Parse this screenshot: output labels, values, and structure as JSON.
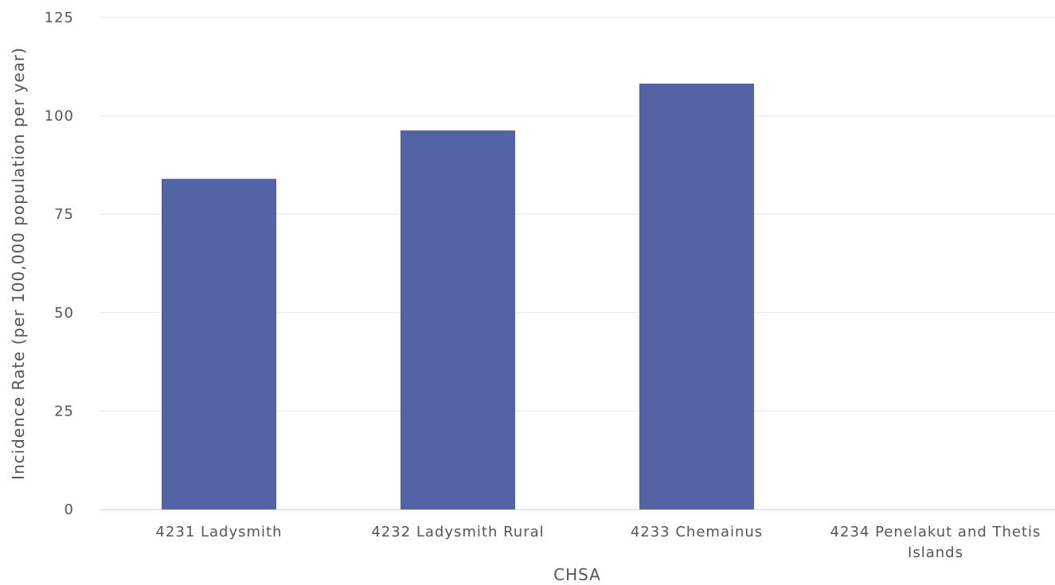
{
  "chart_data": {
    "type": "bar",
    "title": "",
    "xlabel": "CHSA",
    "ylabel": "Incidence Rate (per 100,000 population per year)",
    "ylim": [
      0,
      125
    ],
    "yticks": [
      0,
      25,
      50,
      75,
      100,
      125
    ],
    "categories": [
      "4231 Ladysmith",
      "4232 Ladysmith Rural",
      "4233 Chemainus",
      "4234 Penelakut and Thetis Islands"
    ],
    "category_lines": [
      [
        "4231 Ladysmith"
      ],
      [
        "4232 Ladysmith Rural"
      ],
      [
        "4233 Chemainus"
      ],
      [
        "4234 Penelakut and Thetis",
        "Islands"
      ]
    ],
    "series": [
      {
        "values": [
          84,
          96.3,
          108.2,
          0
        ],
        "color": "#5463a5"
      }
    ],
    "grid": true,
    "legend": "none"
  }
}
